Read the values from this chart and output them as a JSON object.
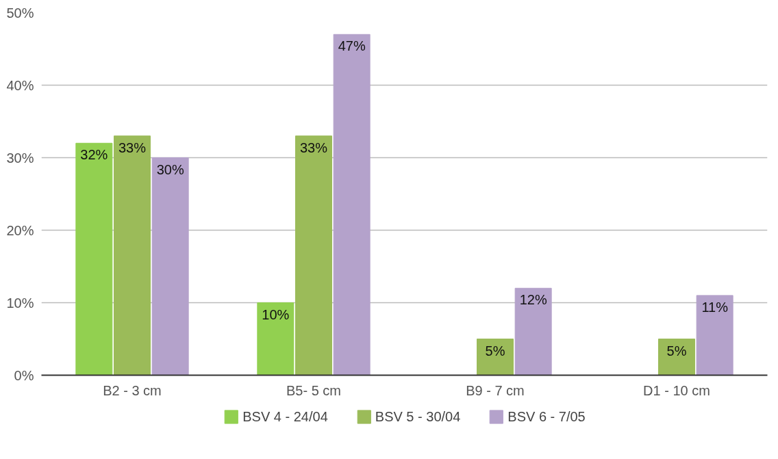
{
  "chart_data": {
    "type": "bar",
    "categories": [
      "B2 - 3 cm",
      "B5- 5 cm",
      "B9 - 7 cm",
      "D1 - 10 cm"
    ],
    "series": [
      {
        "name": "BSV 4 - 24/04",
        "color": "#92d050",
        "values": [
          32,
          10,
          null,
          null
        ],
        "value_labels": [
          "32%",
          "10%",
          null,
          null
        ]
      },
      {
        "name": "BSV 5 - 30/04",
        "color": "#9bbb59",
        "values": [
          33,
          33,
          5,
          5
        ],
        "value_labels": [
          "33%",
          "33%",
          "5%",
          "5%"
        ]
      },
      {
        "name": "BSV 6 - 7/05",
        "color": "#b4a2cb",
        "values": [
          30,
          47,
          12,
          11
        ],
        "value_labels": [
          "30%",
          "47%",
          "12%",
          "11%"
        ]
      }
    ],
    "ylim": [
      0,
      50
    ],
    "yticks": [
      {
        "value": 0,
        "label": "0%"
      },
      {
        "value": 10,
        "label": "10%"
      },
      {
        "value": 20,
        "label": "20%"
      },
      {
        "value": 30,
        "label": "30%"
      },
      {
        "value": 40,
        "label": "40%"
      },
      {
        "value": 50,
        "label": "50%"
      }
    ],
    "grid": "y",
    "legend": "bottom"
  }
}
